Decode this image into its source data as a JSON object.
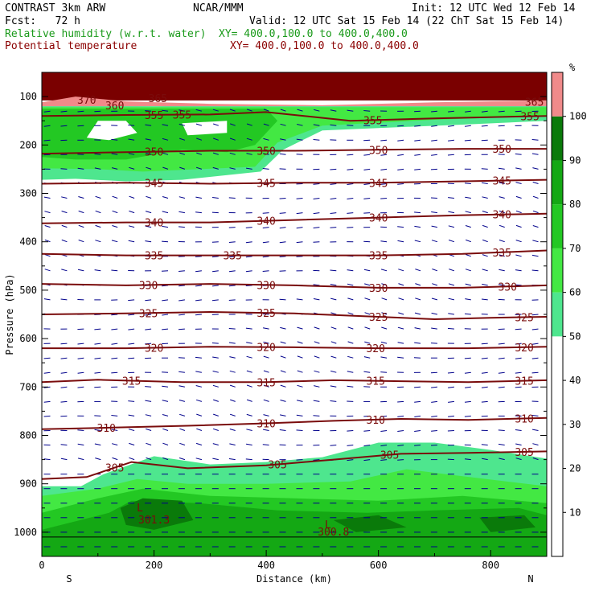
{
  "header": {
    "model": "CONTRAST 3km ARW",
    "org": "NCAR/MMM",
    "init": "Init: 12 UTC Wed 12 Feb 14",
    "fcst": "Fcst:   72 h",
    "valid": "Valid: 12 UTC Sat 15 Feb 14 (22 ChT Sat 15 Feb 14)",
    "field1": "Relative humidity (w.r.t. water)",
    "field1_xy": "XY= 400.0,100.0 to 400.0,400.0",
    "field2": "Potential temperature",
    "field2_xy": "XY= 400.0,100.0 to 400.0,400.0"
  },
  "colors": {
    "rh50": "#4ee68e",
    "rh60": "#43e843",
    "rh70": "#23c823",
    "rh80": "#14a814",
    "rh90": "#0a7a0a",
    "rh100": "#f08a8a",
    "theta_line": "#7a0c0c",
    "top_fill": "#7a0000",
    "wind": "#00008b"
  },
  "chart_data": {
    "type": "heatmap",
    "xlabel": "Distance (km)",
    "ylabel": "Pressure (hPa)",
    "xlim": [
      0,
      900
    ],
    "ylim": [
      1050,
      50
    ],
    "x_ticks": [
      0,
      200,
      400,
      600,
      800
    ],
    "y_ticks": [
      100,
      200,
      300,
      400,
      500,
      600,
      700,
      800,
      900,
      1000
    ],
    "x_end_labels": {
      "left": "S",
      "right": "N"
    },
    "colorbar": {
      "unit": "%",
      "ticks": [
        10,
        20,
        30,
        40,
        50,
        60,
        70,
        80,
        90,
        100
      ],
      "levels": [
        {
          "from": 50,
          "to": 60,
          "color": "#4ee68e"
        },
        {
          "from": 60,
          "to": 70,
          "color": "#43e843"
        },
        {
          "from": 70,
          "to": 80,
          "color": "#23c823"
        },
        {
          "from": 80,
          "to": 90,
          "color": "#14a814"
        },
        {
          "from": 90,
          "to": 100,
          "color": "#0a7a0a"
        },
        {
          "from": 100,
          "to": 110,
          "color": "#f08a8a"
        }
      ]
    },
    "theta_contours": [
      {
        "value": 305,
        "label": "305",
        "x": [
          0,
          80,
          160,
          260,
          400,
          520,
          640,
          760,
          900
        ],
        "p": [
          890,
          886,
          855,
          868,
          862,
          850,
          838,
          836,
          833
        ],
        "labels_at": [
          130,
          420,
          620,
          860
        ]
      },
      {
        "value": 310,
        "label": "310",
        "x": [
          0,
          120,
          260,
          400,
          520,
          640,
          760,
          900
        ],
        "p": [
          787,
          784,
          780,
          775,
          770,
          766,
          768,
          764
        ],
        "labels_at": [
          115,
          400,
          595,
          860
        ]
      },
      {
        "value": 315,
        "label": "315",
        "x": [
          0,
          100,
          250,
          400,
          520,
          640,
          760,
          900
        ],
        "p": [
          690,
          685,
          690,
          690,
          686,
          688,
          690,
          686
        ],
        "labels_at": [
          160,
          400,
          595,
          860
        ]
      },
      {
        "value": 320,
        "label": "320",
        "x": [
          0,
          150,
          300,
          450,
          600,
          760,
          900
        ],
        "p": [
          620,
          620,
          617,
          618,
          620,
          620,
          617
        ],
        "labels_at": [
          200,
          400,
          595,
          860
        ]
      },
      {
        "value": 325,
        "label": "325",
        "x": [
          0,
          150,
          300,
          450,
          600,
          700,
          800,
          900
        ],
        "p": [
          550,
          548,
          545,
          548,
          555,
          560,
          557,
          555
        ],
        "labels_at": [
          190,
          400,
          600,
          860
        ]
      },
      {
        "value": 330,
        "label": "330",
        "x": [
          0,
          150,
          300,
          450,
          600,
          750,
          900
        ],
        "p": [
          487,
          490,
          487,
          490,
          495,
          495,
          490
        ],
        "labels_at": [
          190,
          400,
          600,
          830
        ]
      },
      {
        "value": 335,
        "label": "335",
        "x": [
          0,
          150,
          300,
          450,
          600,
          750,
          900
        ],
        "p": [
          425,
          428,
          428,
          428,
          428,
          425,
          418
        ],
        "labels_at": [
          200,
          340,
          600,
          820
        ]
      },
      {
        "value": 340,
        "label": "340",
        "x": [
          0,
          150,
          300,
          450,
          600,
          750,
          900
        ],
        "p": [
          362,
          360,
          360,
          355,
          350,
          345,
          342
        ],
        "labels_at": [
          200,
          400,
          600,
          820
        ]
      },
      {
        "value": 345,
        "label": "345",
        "x": [
          0,
          150,
          300,
          450,
          600,
          750,
          900
        ],
        "p": [
          280,
          278,
          280,
          278,
          278,
          275,
          272
        ],
        "labels_at": [
          200,
          400,
          600,
          820
        ]
      },
      {
        "value": 350,
        "label": "350",
        "x": [
          0,
          150,
          300,
          450,
          600,
          750,
          900
        ],
        "p": [
          218,
          215,
          212,
          212,
          210,
          208,
          208
        ],
        "labels_at": [
          200,
          400,
          600,
          820
        ]
      },
      {
        "value": 355,
        "label": "355",
        "x": [
          0,
          150,
          300,
          400,
          550,
          700,
          900
        ],
        "p": [
          140,
          138,
          137,
          132,
          150,
          145,
          140
        ],
        "labels_at": [
          200,
          250,
          590,
          870
        ]
      }
    ],
    "contour_labels": [
      "370",
      "365",
      "360",
      "365",
      "301.3",
      "300.8"
    ],
    "extremum_labels": [
      "L",
      "L"
    ],
    "rh_regions": [
      {
        "name": "upper_moist_band",
        "levels": [
          50,
          60,
          70,
          80
        ]
      },
      {
        "name": "boundary_layer_moist",
        "levels": [
          50,
          60,
          70,
          80,
          90
        ]
      }
    ]
  }
}
